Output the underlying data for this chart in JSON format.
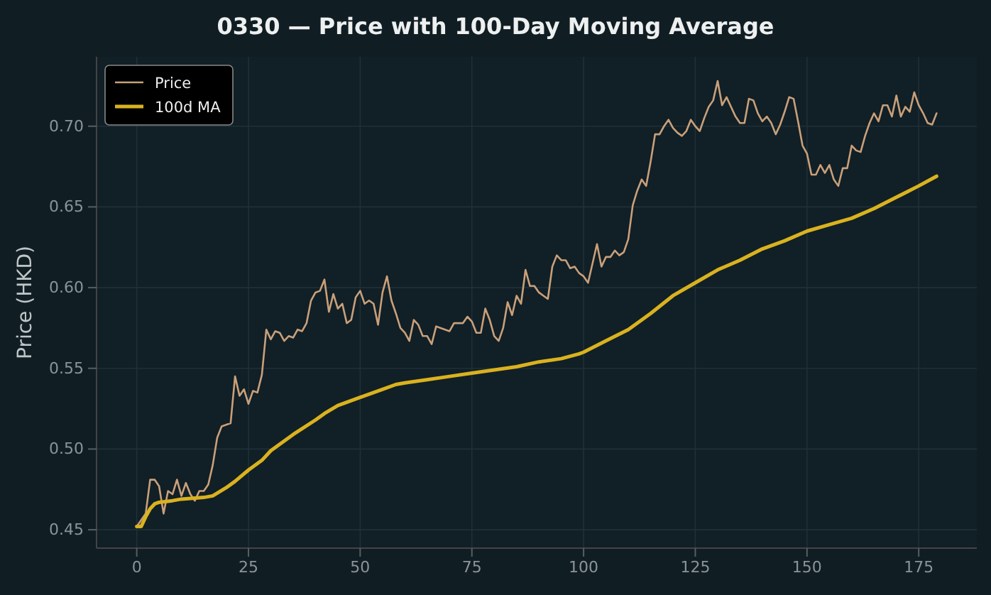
{
  "chart_data": {
    "type": "line",
    "title": "0330 — Price with 100-Day Moving Average",
    "ylabel": "Price (HKD)",
    "xlim": [
      -9,
      188
    ],
    "xticks": [
      0,
      25,
      50,
      75,
      100,
      125,
      150,
      175
    ],
    "ylim": [
      0.4386,
      0.743
    ],
    "yticks": [
      {
        "value": 0.45,
        "label": "0.45"
      },
      {
        "value": 0.5,
        "label": "0.50"
      },
      {
        "value": 0.55,
        "label": "0.55"
      },
      {
        "value": 0.6,
        "label": "0.60"
      },
      {
        "value": 0.65,
        "label": "0.65"
      },
      {
        "value": 0.7,
        "label": "0.70"
      }
    ],
    "grid": true,
    "legend": "top left",
    "series": [
      {
        "name": "Price",
        "color": "#c9a07a",
        "x": [
          0,
          2,
          3,
          4,
          5,
          6,
          7,
          8,
          9,
          10,
          11,
          12,
          13,
          14,
          15,
          16,
          17,
          18,
          19,
          20,
          21,
          22,
          23,
          24,
          25,
          26,
          27,
          28,
          29,
          30,
          31,
          32,
          33,
          34,
          35,
          36,
          37,
          38,
          39,
          40,
          41,
          42,
          43,
          44,
          45,
          46,
          47,
          48,
          49,
          50,
          51,
          52,
          53,
          54,
          55,
          56,
          57,
          58,
          59,
          60,
          61,
          62,
          63,
          64,
          65,
          66,
          67,
          68,
          69,
          70,
          71,
          72,
          73,
          74,
          75,
          76,
          77,
          78,
          79,
          80,
          81,
          82,
          83,
          84,
          85,
          86,
          87,
          88,
          89,
          90,
          91,
          92,
          93,
          94,
          95,
          96,
          97,
          98,
          99,
          100,
          101,
          102,
          103,
          104,
          105,
          106,
          107,
          108,
          109,
          110,
          111,
          112,
          113,
          114,
          115,
          116,
          117,
          118,
          119,
          120,
          121,
          122,
          123,
          124,
          125,
          126,
          127,
          128,
          129,
          130,
          131,
          132,
          133,
          134,
          135,
          136,
          137,
          138,
          139,
          140,
          141,
          142,
          143,
          144,
          145,
          146,
          147,
          148,
          149,
          150,
          151,
          152,
          153,
          154,
          155,
          156,
          157,
          158,
          159,
          160,
          161,
          162,
          163,
          164,
          165,
          166,
          167,
          168,
          169,
          170,
          171,
          172,
          173,
          174,
          175,
          176,
          177,
          178,
          179
        ],
        "values": [
          0.452,
          0.46,
          0.481,
          0.481,
          0.477,
          0.46,
          0.474,
          0.472,
          0.481,
          0.471,
          0.479,
          0.472,
          0.468,
          0.474,
          0.474,
          0.478,
          0.49,
          0.507,
          0.514,
          0.515,
          0.516,
          0.545,
          0.533,
          0.537,
          0.528,
          0.536,
          0.535,
          0.546,
          0.574,
          0.568,
          0.573,
          0.572,
          0.567,
          0.57,
          0.569,
          0.574,
          0.573,
          0.578,
          0.592,
          0.597,
          0.598,
          0.605,
          0.585,
          0.596,
          0.587,
          0.59,
          0.578,
          0.58,
          0.594,
          0.598,
          0.59,
          0.592,
          0.59,
          0.577,
          0.597,
          0.607,
          0.592,
          0.584,
          0.575,
          0.572,
          0.567,
          0.58,
          0.577,
          0.57,
          0.57,
          0.565,
          0.576,
          0.575,
          0.574,
          0.573,
          0.578,
          0.578,
          0.578,
          0.582,
          0.579,
          0.572,
          0.572,
          0.587,
          0.58,
          0.57,
          0.567,
          0.575,
          0.591,
          0.583,
          0.595,
          0.59,
          0.611,
          0.601,
          0.601,
          0.597,
          0.595,
          0.593,
          0.613,
          0.62,
          0.617,
          0.617,
          0.612,
          0.613,
          0.609,
          0.607,
          0.603,
          0.615,
          0.627,
          0.613,
          0.619,
          0.619,
          0.623,
          0.62,
          0.622,
          0.63,
          0.651,
          0.66,
          0.667,
          0.663,
          0.678,
          0.695,
          0.695,
          0.7,
          0.704,
          0.699,
          0.696,
          0.694,
          0.697,
          0.704,
          0.7,
          0.697,
          0.705,
          0.712,
          0.716,
          0.728,
          0.713,
          0.718,
          0.712,
          0.706,
          0.702,
          0.702,
          0.717,
          0.716,
          0.708,
          0.703,
          0.706,
          0.702,
          0.695,
          0.701,
          0.709,
          0.718,
          0.717,
          0.703,
          0.688,
          0.683,
          0.67,
          0.67,
          0.676,
          0.671,
          0.676,
          0.667,
          0.663,
          0.674,
          0.674,
          0.688,
          0.685,
          0.684,
          0.694,
          0.702,
          0.708,
          0.703,
          0.713,
          0.713,
          0.706,
          0.719,
          0.706,
          0.712,
          0.709,
          0.721,
          0.713,
          0.708,
          0.702,
          0.701,
          0.708
        ]
      },
      {
        "name": "100d MA",
        "color": "#d9b21f",
        "x": [
          0,
          1,
          2,
          3,
          4,
          5,
          8,
          10,
          15,
          17,
          20,
          22,
          25,
          28,
          30,
          35,
          40,
          42,
          45,
          50,
          55,
          58,
          60,
          65,
          70,
          75,
          80,
          85,
          90,
          95,
          99,
          100,
          105,
          110,
          115,
          120,
          125,
          130,
          135,
          140,
          145,
          150,
          155,
          160,
          165,
          170,
          175,
          179
        ],
        "values": [
          0.452,
          0.452,
          0.458,
          0.463,
          0.466,
          0.467,
          0.468,
          0.469,
          0.47,
          0.471,
          0.476,
          0.48,
          0.487,
          0.493,
          0.499,
          0.509,
          0.518,
          0.522,
          0.527,
          0.532,
          0.537,
          0.54,
          0.541,
          0.543,
          0.545,
          0.547,
          0.549,
          0.551,
          0.554,
          0.556,
          0.559,
          0.56,
          0.567,
          0.574,
          0.584,
          0.595,
          0.603,
          0.611,
          0.617,
          0.624,
          0.629,
          0.635,
          0.639,
          0.643,
          0.649,
          0.656,
          0.663,
          0.669
        ]
      }
    ]
  }
}
